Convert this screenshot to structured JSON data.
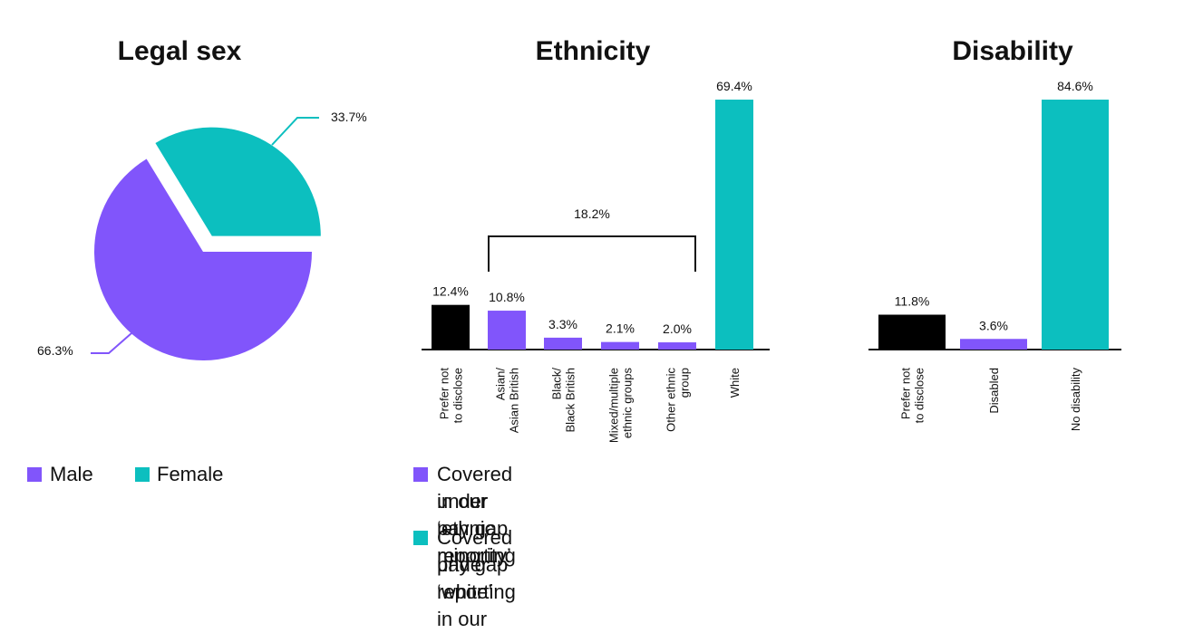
{
  "colors": {
    "purple": "#8155fb",
    "teal": "#0cbfbf",
    "black": "#000000"
  },
  "chart_data": [
    {
      "type": "pie",
      "title": "Legal sex",
      "slices": [
        {
          "name": "Male",
          "value": 66.3,
          "label": "66.3%",
          "color": "#8155fb"
        },
        {
          "name": "Female",
          "value": 33.7,
          "label": "33.7%",
          "color": "#0cbfbf"
        }
      ],
      "legend": [
        "Male",
        "Female"
      ],
      "legend_position": "bottom-left"
    },
    {
      "type": "bar",
      "title": "Ethnicity",
      "categories": [
        "Prefer not to disclose",
        "Asian/ Asian British",
        "Black/ Black British",
        "Mixed/multiple ethnic groups",
        "Other ethnic group",
        "White"
      ],
      "tick_lines": [
        [
          "Prefer not",
          "to disclose"
        ],
        [
          "Asian/",
          "Asian British"
        ],
        [
          "Black/",
          "Black British"
        ],
        [
          "Mixed/multiple",
          "ethnic groups"
        ],
        [
          "Other ethnic",
          "group"
        ],
        [
          "White"
        ]
      ],
      "values": [
        12.4,
        10.8,
        3.3,
        2.1,
        2.0,
        69.4
      ],
      "labels": [
        "12.4%",
        "10.8%",
        "3.3%",
        "2.1%",
        "2.0%",
        "69.4%"
      ],
      "bar_colors": [
        "#000000",
        "#8155fb",
        "#8155fb",
        "#8155fb",
        "#8155fb",
        "#0cbfbf"
      ],
      "bracket": {
        "from": 1,
        "to": 4,
        "label": "18.2%"
      },
      "legend": [
        {
          "lines": [
            "Covered under ‘ethnic minority’",
            "in our pay gap reporting"
          ],
          "color": "#8155fb"
        },
        {
          "lines": [
            "Covered under ‘white’ in our",
            "pay gap reporting"
          ],
          "color": "#0cbfbf"
        }
      ],
      "legend_position": "bottom"
    },
    {
      "type": "bar",
      "title": "Disability",
      "categories": [
        "Prefer not to disclose",
        "Disabled",
        "No disability"
      ],
      "tick_lines": [
        [
          "Prefer not",
          "to disclose"
        ],
        [
          "Disabled"
        ],
        [
          "No disability"
        ]
      ],
      "values": [
        11.8,
        3.6,
        84.6
      ],
      "labels": [
        "11.8%",
        "3.6%",
        "84.6%"
      ],
      "bar_colors": [
        "#000000",
        "#8155fb",
        "#0cbfbf"
      ]
    }
  ]
}
